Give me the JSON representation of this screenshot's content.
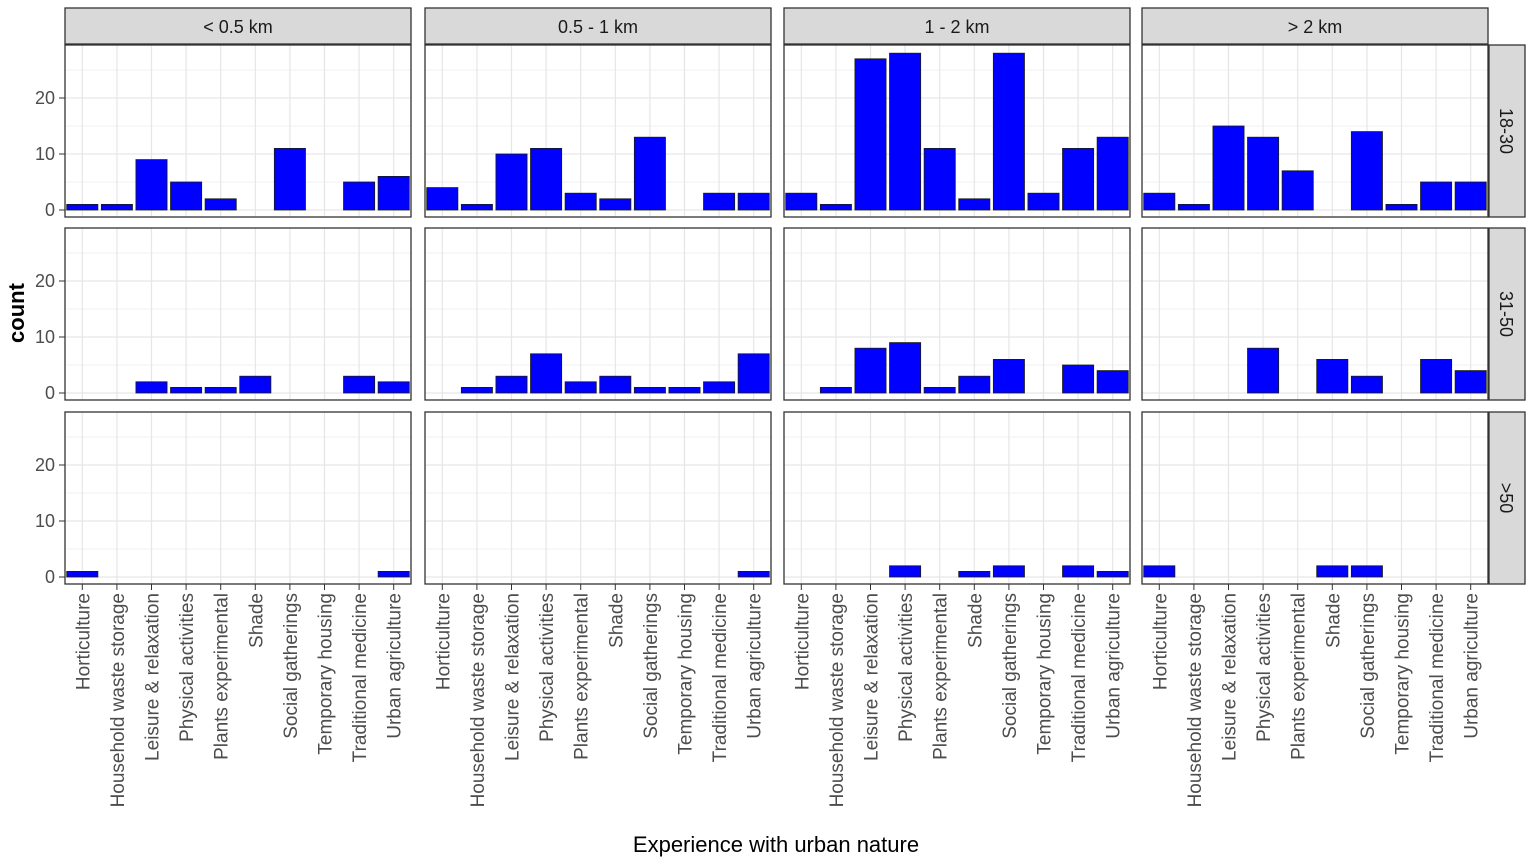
{
  "chart_data": {
    "type": "bar",
    "title": "",
    "xlabel": "Experience with urban nature",
    "ylabel": "count",
    "ylim": [
      0,
      29
    ],
    "yticks": [
      0,
      10,
      20
    ],
    "grid": true,
    "bar_color": "#0000ff",
    "categories": [
      "Horticulture",
      "Household waste storage",
      "Leisure & relaxation",
      "Physical activities",
      "Plants experimental",
      "Shade",
      "Social gatherings",
      "Temporary housing",
      "Traditional medicine",
      "Urban agriculture"
    ],
    "facet_columns": [
      "< 0.5 km",
      "0.5 - 1 km",
      "1 - 2 km",
      "> 2 km"
    ],
    "facet_rows": [
      "18-30",
      "31-50",
      ">50"
    ],
    "panels": [
      [
        [
          1,
          1,
          9,
          5,
          2,
          0,
          11,
          0,
          5,
          6
        ],
        [
          4,
          1,
          10,
          11,
          3,
          2,
          13,
          0,
          3,
          3
        ],
        [
          3,
          1,
          27,
          28,
          11,
          2,
          28,
          3,
          11,
          13
        ],
        [
          3,
          1,
          15,
          13,
          7,
          0,
          14,
          1,
          5,
          5
        ]
      ],
      [
        [
          0,
          0,
          2,
          1,
          1,
          3,
          0,
          0,
          3,
          2
        ],
        [
          0,
          1,
          3,
          7,
          2,
          3,
          1,
          1,
          2,
          7
        ],
        [
          0,
          1,
          8,
          9,
          1,
          3,
          6,
          0,
          5,
          4
        ],
        [
          0,
          0,
          0,
          8,
          0,
          6,
          3,
          0,
          6,
          4
        ]
      ],
      [
        [
          1,
          0,
          0,
          0,
          0,
          0,
          0,
          0,
          0,
          1
        ],
        [
          0,
          0,
          0,
          0,
          0,
          0,
          0,
          0,
          0,
          1
        ],
        [
          0,
          0,
          0,
          2,
          0,
          1,
          2,
          0,
          2,
          1
        ],
        [
          2,
          0,
          0,
          0,
          0,
          2,
          2,
          0,
          0,
          0
        ]
      ]
    ]
  }
}
